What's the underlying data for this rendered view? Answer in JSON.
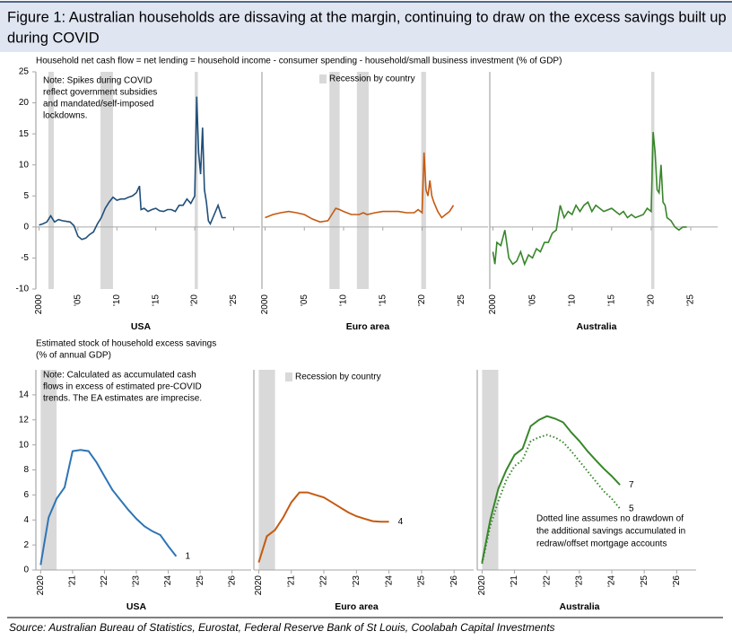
{
  "figure": {
    "title": [
      "Figure 1: Australian households are dissaving at the margin, continuing to draw on the excess savings built up",
      "during COVID"
    ],
    "source": "Source: Australian Bureau of Statistics, Eurostat, Federal Reserve Bank of St Louis, Coolabah Capital Investments"
  },
  "chart_data": [
    {
      "type": "line",
      "title": "Household net cash flow = net lending = household income - consumer spending - household/small business investment (% of GDP)",
      "panel": "USA",
      "color": "#1f4e79",
      "note": [
        "Note: Spikes during COVID",
        "reflect government subsidies",
        "and mandated/self-imposed",
        "lockdowns."
      ],
      "xlim": [
        1999.6,
        2028.4
      ],
      "ylim": [
        -10,
        25
      ],
      "yticks": [
        -10,
        -5,
        0,
        5,
        10,
        15,
        20,
        25
      ],
      "xticks": [
        2000,
        {
          "value": 2005,
          "label": "'05"
        },
        {
          "value": 2010,
          "label": "'10"
        },
        {
          "value": 2015,
          "label": "'15"
        },
        {
          "value": 2020,
          "label": "'20"
        },
        {
          "value": 2025,
          "label": "'25"
        }
      ],
      "recessions": [
        [
          2001.2,
          2001.9
        ],
        [
          2007.9,
          2009.5
        ],
        [
          2020,
          2020.4
        ]
      ],
      "x": [
        2000,
        2000.5,
        2001,
        2001.5,
        2002,
        2002.5,
        2003,
        2004,
        2004.5,
        2005,
        2005.5,
        2006,
        2006.5,
        2007,
        2007.5,
        2008,
        2008.5,
        2009,
        2009.5,
        2010,
        2010.5,
        2011,
        2011.5,
        2012,
        2012.5,
        2012.9,
        2013.1,
        2013.5,
        2014,
        2014.5,
        2015,
        2015.5,
        2016,
        2016.5,
        2017,
        2017.5,
        2018,
        2018.5,
        2019,
        2019.5,
        2020,
        2020.25,
        2020.5,
        2020.75,
        2021,
        2021.25,
        2021.5,
        2021.75,
        2022,
        2022.5,
        2023,
        2023.5,
        2024
      ],
      "values": [
        0.3,
        0.5,
        0.8,
        1.8,
        0.8,
        1.2,
        1.0,
        0.8,
        0.2,
        -1.5,
        -2.0,
        -1.8,
        -1.2,
        -0.8,
        0.5,
        1.5,
        3.0,
        4.0,
        4.8,
        4.3,
        4.5,
        4.5,
        4.8,
        5.0,
        5.5,
        6.6,
        2.8,
        3.0,
        2.5,
        2.8,
        3.0,
        2.6,
        2.5,
        2.8,
        2.8,
        2.5,
        3.5,
        3.5,
        4.5,
        3.8,
        5.0,
        21.0,
        12.0,
        8.5,
        16.0,
        6.0,
        4.0,
        1.0,
        0.5,
        2.0,
        3.5,
        1.5,
        1.5
      ]
    },
    {
      "type": "line",
      "panel": "Euro area",
      "color": "#c55a11",
      "shading_label": "Recession by country",
      "xlim": [
        1999.6,
        2028.4
      ],
      "ylim": [
        -10,
        25
      ],
      "xticks": [
        2000,
        {
          "value": 2005,
          "label": "'05"
        },
        {
          "value": 2010,
          "label": "'10"
        },
        {
          "value": 2015,
          "label": "'15"
        },
        {
          "value": 2020,
          "label": "'20"
        },
        {
          "value": 2025,
          "label": "'25"
        }
      ],
      "recessions": [
        [
          2008.2,
          2009.5
        ],
        [
          2011.7,
          2013.2
        ],
        [
          2019.9,
          2020.5
        ]
      ],
      "x": [
        2000,
        2001,
        2002,
        2003,
        2004,
        2005,
        2006,
        2007,
        2008,
        2008.5,
        2009,
        2009.5,
        2010,
        2011,
        2012,
        2012.5,
        2013,
        2014,
        2015,
        2016,
        2017,
        2018,
        2019,
        2019.5,
        2020,
        2020.25,
        2020.5,
        2020.75,
        2021,
        2021.25,
        2021.5,
        2022,
        2022.5,
        2023,
        2023.5,
        2024
      ],
      "values": [
        1.5,
        2.0,
        2.3,
        2.5,
        2.3,
        2.0,
        1.3,
        0.8,
        1.0,
        2.0,
        3.0,
        2.8,
        2.5,
        2.0,
        2.0,
        2.3,
        2.0,
        2.3,
        2.5,
        2.5,
        2.5,
        2.3,
        2.3,
        2.8,
        2.3,
        12.0,
        6.0,
        5.0,
        7.5,
        5.0,
        4.0,
        2.5,
        1.5,
        2.0,
        2.5,
        3.5
      ]
    },
    {
      "type": "line",
      "panel": "Australia",
      "color": "#38862a",
      "xlim": [
        1999.6,
        2028.4
      ],
      "ylim": [
        -10,
        25
      ],
      "xticks": [
        2000,
        {
          "value": 2005,
          "label": "'05"
        },
        {
          "value": 2010,
          "label": "'10"
        },
        {
          "value": 2015,
          "label": "'15"
        },
        {
          "value": 2020,
          "label": "'20"
        },
        {
          "value": 2025,
          "label": "'25"
        }
      ],
      "recessions": [
        [
          2020,
          2020.4
        ]
      ],
      "x": [
        2000,
        2000.25,
        2000.5,
        2001,
        2001.5,
        2002,
        2002.5,
        2003,
        2003.5,
        2004,
        2004.5,
        2005,
        2005.5,
        2006,
        2006.5,
        2007,
        2007.5,
        2008,
        2008.5,
        2009,
        2009.5,
        2010,
        2010.5,
        2011,
        2011.5,
        2012,
        2012.5,
        2013,
        2013.5,
        2014,
        2015,
        2016,
        2016.5,
        2017,
        2017.5,
        2018,
        2019,
        2019.5,
        2020,
        2020.25,
        2020.5,
        2020.75,
        2021,
        2021.25,
        2021.5,
        2021.75,
        2022,
        2022.5,
        2023,
        2023.5,
        2024,
        2024.5
      ],
      "values": [
        -4.0,
        -6.0,
        -2.5,
        -3.0,
        -0.5,
        -5.0,
        -6.0,
        -5.5,
        -4.0,
        -6.0,
        -4.5,
        -5.0,
        -3.5,
        -4.0,
        -2.5,
        -2.5,
        -1.0,
        -0.5,
        3.5,
        1.5,
        2.5,
        2.0,
        3.5,
        2.5,
        3.5,
        4.0,
        2.5,
        3.5,
        3.0,
        2.5,
        3.0,
        2.0,
        2.5,
        1.5,
        2.0,
        1.5,
        2.0,
        3.0,
        2.5,
        15.3,
        12.0,
        6.0,
        5.5,
        10.0,
        4.0,
        3.5,
        1.5,
        1.0,
        0.0,
        -0.5,
        0.0,
        0.0
      ]
    },
    {
      "type": "line",
      "title": [
        "Estimated stock of household excess savings",
        "(% of annual GDP)"
      ],
      "panel": "USA",
      "note": [
        "Note: Calculated as accumulated cash",
        "flows in excess of estimated pre-COVID",
        "trends. The EA estimates are imprecise."
      ],
      "xlim": [
        2019.85,
        2026.6
      ],
      "ylim": [
        0,
        16
      ],
      "yticks": [
        0,
        2,
        4,
        6,
        8,
        10,
        12,
        14
      ],
      "xticks": [
        2020,
        {
          "value": 2021,
          "label": "'21"
        },
        {
          "value": 2022,
          "label": "'22"
        },
        {
          "value": 2023,
          "label": "'23"
        },
        {
          "value": 2024,
          "label": "'24"
        },
        {
          "value": 2025,
          "label": "'25"
        },
        {
          "value": 2026,
          "label": "'26"
        }
      ],
      "recessions": [
        [
          2020,
          2020.5
        ]
      ],
      "series": [
        {
          "color": "#2e75b6",
          "x": [
            2020,
            2020.25,
            2020.5,
            2020.75,
            2021,
            2021.25,
            2021.5,
            2021.75,
            2022,
            2022.25,
            2022.5,
            2022.75,
            2023,
            2023.25,
            2023.5,
            2023.75,
            2024,
            2024.25
          ],
          "values": [
            0.4,
            4.2,
            5.7,
            6.6,
            9.5,
            9.6,
            9.5,
            8.6,
            7.5,
            6.4,
            5.6,
            4.8,
            4.1,
            3.5,
            3.1,
            2.8,
            1.9,
            1.1
          ],
          "value_labels": [
            null,
            null,
            null,
            null,
            null,
            null,
            null,
            null,
            null,
            null,
            null,
            null,
            null,
            null,
            null,
            null,
            null,
            "1"
          ]
        }
      ]
    },
    {
      "type": "line",
      "panel": "Euro area",
      "shading_label": "Recession by country",
      "xlim": [
        2019.85,
        2026.6
      ],
      "ylim": [
        0,
        16
      ],
      "xticks": [
        2020,
        {
          "value": 2021,
          "label": "'21"
        },
        {
          "value": 2022,
          "label": "'22"
        },
        {
          "value": 2023,
          "label": "'23"
        },
        {
          "value": 2024,
          "label": "'24"
        },
        {
          "value": 2025,
          "label": "'25"
        },
        {
          "value": 2026,
          "label": "'26"
        }
      ],
      "recessions": [
        [
          2020,
          2020.5
        ]
      ],
      "series": [
        {
          "color": "#c55a11",
          "x": [
            2020,
            2020.25,
            2020.5,
            2020.75,
            2021,
            2021.25,
            2021.5,
            2021.75,
            2022,
            2022.25,
            2022.5,
            2022.75,
            2023,
            2023.25,
            2023.5,
            2023.75,
            2024
          ],
          "values": [
            0.6,
            2.7,
            3.2,
            4.2,
            5.4,
            6.2,
            6.2,
            6.0,
            5.8,
            5.4,
            5.0,
            4.6,
            4.3,
            4.1,
            3.9,
            3.85,
            3.85
          ],
          "value_labels": [
            null,
            null,
            null,
            null,
            null,
            null,
            null,
            null,
            null,
            null,
            null,
            null,
            null,
            null,
            null,
            null,
            "4"
          ]
        }
      ]
    },
    {
      "type": "line",
      "panel": "Australia",
      "note": [
        "Dotted line assumes no drawdown of",
        "the additional savings accumulated in",
        "redraw/offset mortgage accounts"
      ],
      "xlim": [
        2019.85,
        2026.6
      ],
      "ylim": [
        0,
        16
      ],
      "xticks": [
        2020,
        {
          "value": 2021,
          "label": "'21"
        },
        {
          "value": 2022,
          "label": "'22"
        },
        {
          "value": 2023,
          "label": "'23"
        },
        {
          "value": 2024,
          "label": "'24"
        },
        {
          "value": 2025,
          "label": "'25"
        },
        {
          "value": 2026,
          "label": "'26"
        }
      ],
      "recessions": [
        [
          2020,
          2020.5
        ]
      ],
      "series": [
        {
          "color": "#38862a",
          "x": [
            2020,
            2020.25,
            2020.5,
            2020.75,
            2021,
            2021.25,
            2021.5,
            2021.75,
            2022,
            2022.25,
            2022.5,
            2022.75,
            2023,
            2023.25,
            2023.5,
            2023.75,
            2024,
            2024.25
          ],
          "values": [
            0.6,
            4.0,
            6.5,
            8.0,
            9.2,
            9.7,
            11.5,
            12.0,
            12.3,
            12.1,
            11.8,
            11.0,
            10.3,
            9.5,
            8.8,
            8.1,
            7.5,
            6.8
          ],
          "value_labels": [
            null,
            null,
            null,
            null,
            null,
            null,
            null,
            null,
            null,
            null,
            null,
            null,
            null,
            null,
            null,
            null,
            null,
            "7"
          ]
        },
        {
          "color": "#38862a",
          "dotted": true,
          "x": [
            2020,
            2020.25,
            2020.5,
            2020.75,
            2021,
            2021.25,
            2021.5,
            2021.75,
            2022,
            2022.25,
            2022.5,
            2022.75,
            2023,
            2023.25,
            2023.5,
            2023.75,
            2024,
            2024.25
          ],
          "values": [
            0.5,
            3.5,
            5.5,
            7.2,
            8.3,
            8.8,
            10.3,
            10.6,
            10.8,
            10.6,
            10.2,
            9.5,
            8.7,
            7.9,
            7.1,
            6.3,
            5.7,
            4.9
          ],
          "value_labels": [
            null,
            null,
            null,
            null,
            null,
            null,
            null,
            null,
            null,
            null,
            null,
            null,
            null,
            null,
            null,
            null,
            null,
            "5"
          ]
        }
      ]
    }
  ]
}
